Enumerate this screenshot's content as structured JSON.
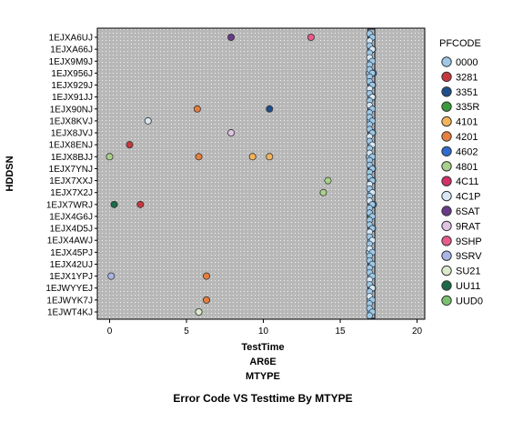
{
  "chart_data": {
    "type": "scatter",
    "title": "Error Code VS Testtime By MTYPE",
    "xlabel": "TestTime",
    "xlabel_lines": [
      "AR6E",
      "MTYPE"
    ],
    "ylabel": "HDDSN",
    "xlim": [
      -0.8,
      20.5
    ],
    "xticks": [
      0,
      5,
      10,
      15,
      20
    ],
    "grid": true,
    "legend_title": "PFCODE",
    "legend_position": "right",
    "categories": [
      "1EJXA6UJ",
      "1EJXA66J",
      "1EJX9M9J",
      "1EJX956J",
      "1EJX929J",
      "1EJX91JJ",
      "1EJX90NJ",
      "1EJX8KVJ",
      "1EJX8JVJ",
      "1EJX8ENJ",
      "1EJX8BJJ",
      "1EJX7YNJ",
      "1EJX7XXJ",
      "1EJX7X2J",
      "1EJX7WRJ",
      "1EJX4G6J",
      "1EJX4D5J",
      "1EJX4AWJ",
      "1EJX45PJ",
      "1EJX42UJ",
      "1EJX1YPJ",
      "1EJWYYEJ",
      "1EJWYK7J",
      "1EJWT4KJ"
    ],
    "legend": [
      {
        "code": "0000",
        "color": "#9ec9e6"
      },
      {
        "code": "3281",
        "color": "#c8373d"
      },
      {
        "code": "3351",
        "color": "#1f4e8c"
      },
      {
        "code": "335R",
        "color": "#3a9b3a"
      },
      {
        "code": "4101",
        "color": "#f4b459"
      },
      {
        "code": "4201",
        "color": "#e67e3c"
      },
      {
        "code": "4602",
        "color": "#2f6bd1"
      },
      {
        "code": "4801",
        "color": "#a8d18a"
      },
      {
        "code": "4C11",
        "color": "#d4306a"
      },
      {
        "code": "4C1P",
        "color": "#d8e8f4"
      },
      {
        "code": "6SAT",
        "color": "#6a3a8a"
      },
      {
        "code": "9RAT",
        "color": "#e0c3e3"
      },
      {
        "code": "9SHP",
        "color": "#ea5a8a"
      },
      {
        "code": "9SRV",
        "color": "#aab6e6"
      },
      {
        "code": "SU21",
        "color": "#dceacc"
      },
      {
        "code": "UU11",
        "color": "#1a6a48"
      },
      {
        "code": "UUD0",
        "color": "#7ac270"
      }
    ],
    "series": [
      {
        "name": "6SAT",
        "points": [
          {
            "x": 7.9,
            "y": "1EJXA6UJ"
          }
        ]
      },
      {
        "name": "9SHP",
        "points": [
          {
            "x": 13.1,
            "y": "1EJXA6UJ"
          }
        ]
      },
      {
        "name": "3351",
        "points": [
          {
            "x": 10.4,
            "y": "1EJX90NJ"
          }
        ]
      },
      {
        "name": "4201",
        "points": [
          {
            "x": 5.7,
            "y": "1EJX90NJ"
          },
          {
            "x": 5.8,
            "y": "1EJX8BJJ"
          },
          {
            "x": 6.3,
            "y": "1EJX1YPJ"
          },
          {
            "x": 6.3,
            "y": "1EJWYK7J"
          }
        ]
      },
      {
        "name": "4C1P",
        "points": [
          {
            "x": 2.5,
            "y": "1EJX8KVJ"
          }
        ]
      },
      {
        "name": "9RAT",
        "points": [
          {
            "x": 7.9,
            "y": "1EJX8JVJ"
          }
        ]
      },
      {
        "name": "3281",
        "points": [
          {
            "x": 1.3,
            "y": "1EJX8ENJ"
          },
          {
            "x": 2.0,
            "y": "1EJX7WRJ"
          }
        ]
      },
      {
        "name": "4801",
        "points": [
          {
            "x": 0.0,
            "y": "1EJX8BJJ"
          },
          {
            "x": 14.2,
            "y": "1EJX7XXJ"
          },
          {
            "x": 13.9,
            "y": "1EJX7X2J"
          }
        ]
      },
      {
        "name": "4101",
        "points": [
          {
            "x": 9.3,
            "y": "1EJX8BJJ"
          },
          {
            "x": 10.4,
            "y": "1EJX8BJJ"
          }
        ]
      },
      {
        "name": "UU11",
        "points": [
          {
            "x": 0.3,
            "y": "1EJX7WRJ"
          }
        ]
      },
      {
        "name": "9SRV",
        "points": [
          {
            "x": 0.1,
            "y": "1EJX1YPJ"
          }
        ]
      },
      {
        "name": "SU21",
        "points": [
          {
            "x": 5.8,
            "y": "1EJWT4KJ"
          }
        ]
      },
      {
        "name": "0000",
        "points": [
          {
            "x": 17.05,
            "y": "1EJXA6UJ"
          },
          {
            "x": 17.1,
            "y": "1EJXA66J"
          },
          {
            "x": 17.0,
            "y": "1EJX9M9J"
          },
          {
            "x": 16.9,
            "y": "1EJX956J"
          },
          {
            "x": 17.1,
            "y": "1EJX929J"
          },
          {
            "x": 17.0,
            "y": "1EJX91JJ"
          },
          {
            "x": 16.95,
            "y": "1EJX8KVJ"
          },
          {
            "x": 17.1,
            "y": "1EJX8JVJ"
          },
          {
            "x": 17.0,
            "y": "1EJX8ENJ"
          },
          {
            "x": 16.9,
            "y": "1EJX8BJJ"
          },
          {
            "x": 17.05,
            "y": "1EJX7YNJ"
          },
          {
            "x": 17.1,
            "y": "1EJX7XXJ"
          },
          {
            "x": 17.0,
            "y": "1EJX7X2J"
          },
          {
            "x": 16.95,
            "y": "1EJX4G6J"
          },
          {
            "x": 17.1,
            "y": "1EJX4D5J"
          },
          {
            "x": 17.0,
            "y": "1EJX4AWJ"
          },
          {
            "x": 16.9,
            "y": "1EJX45PJ"
          },
          {
            "x": 17.05,
            "y": "1EJX42UJ"
          },
          {
            "x": 17.0,
            "y": "1EJX1YPJ"
          },
          {
            "x": 17.1,
            "y": "1EJWYYEJ"
          },
          {
            "x": 16.95,
            "y": "1EJWYK7J"
          },
          {
            "x": 17.0,
            "y": "1EJWT4KJ"
          }
        ]
      },
      {
        "name": "4602",
        "points": [
          {
            "x": 17.15,
            "y": "1EJX956J"
          },
          {
            "x": 17.1,
            "y": "1EJX7YNJ"
          },
          {
            "x": 17.15,
            "y": "1EJX7WRJ"
          }
        ]
      },
      {
        "name": "335R",
        "points": [
          {
            "x": 17.1,
            "y": "1EJX91JJ"
          }
        ]
      },
      {
        "name": "UUD0",
        "points": [
          {
            "x": 17.0,
            "y": "1EJX4G6J"
          }
        ]
      }
    ]
  }
}
